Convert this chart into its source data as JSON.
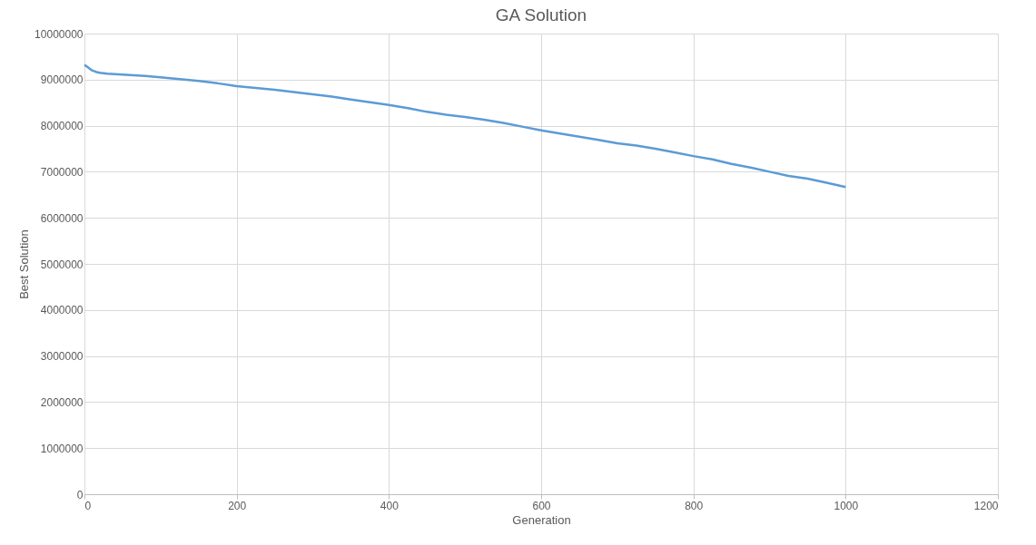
{
  "chart_data": {
    "type": "line",
    "title": "GA Solution",
    "xlabel": "Generation",
    "ylabel": "Best Solution",
    "x": [
      0,
      5,
      10,
      15,
      20,
      30,
      40,
      60,
      80,
      100,
      125,
      150,
      175,
      200,
      225,
      250,
      275,
      300,
      325,
      350,
      375,
      400,
      425,
      450,
      475,
      500,
      525,
      550,
      575,
      600,
      625,
      650,
      675,
      700,
      725,
      750,
      775,
      800,
      825,
      850,
      875,
      900,
      925,
      950,
      975,
      1000
    ],
    "series": [
      {
        "color": "#5b9bd5",
        "values": [
          9320000,
          9260000,
          9200000,
          9170000,
          9150000,
          9130000,
          9120000,
          9100000,
          9080000,
          9050000,
          9010000,
          8970000,
          8920000,
          8860000,
          8820000,
          8780000,
          8730000,
          8680000,
          8630000,
          8570000,
          8510000,
          8450000,
          8380000,
          8300000,
          8240000,
          8190000,
          8130000,
          8060000,
          7980000,
          7900000,
          7830000,
          7760000,
          7690000,
          7620000,
          7570000,
          7500000,
          7420000,
          7340000,
          7270000,
          7170000,
          7090000,
          7000000,
          6910000,
          6850000,
          6760000,
          6670000
        ]
      }
    ],
    "xlim": [
      0,
      1200
    ],
    "xticks": [
      0,
      200,
      400,
      600,
      800,
      1000,
      1200
    ],
    "ylim": [
      0,
      10000000
    ],
    "yticks": [
      0,
      1000000,
      2000000,
      3000000,
      4000000,
      5000000,
      6000000,
      7000000,
      8000000,
      9000000,
      10000000
    ],
    "grid": true,
    "marker": "none",
    "line_style": "solid"
  }
}
